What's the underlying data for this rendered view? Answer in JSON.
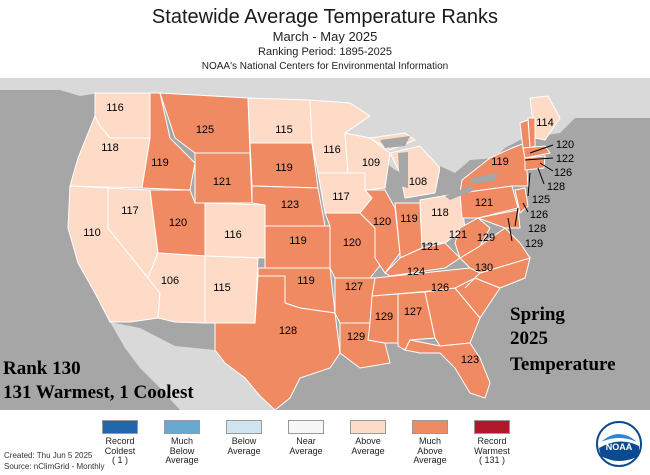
{
  "header": {
    "title": "Statewide Average Temperature Ranks",
    "period": "March - May 2025",
    "ranking_period": "Ranking Period: 1895-2025",
    "source_org": "NOAA's National Centers for Environmental Information"
  },
  "overlay": {
    "rank_line": "Rank 130",
    "warm_cool_line": "131 Warmest, 1 Coolest",
    "season_line1": "Spring",
    "season_line2": "2025",
    "season_line3": "Temperature"
  },
  "states": [
    {
      "name": "Washington",
      "rank": "116"
    },
    {
      "name": "Oregon",
      "rank": "118"
    },
    {
      "name": "California",
      "rank": "110"
    },
    {
      "name": "Nevada",
      "rank": "117"
    },
    {
      "name": "Idaho",
      "rank": "119"
    },
    {
      "name": "Montana",
      "rank": "125"
    },
    {
      "name": "Wyoming",
      "rank": "121"
    },
    {
      "name": "Utah",
      "rank": "120"
    },
    {
      "name": "Arizona",
      "rank": "106"
    },
    {
      "name": "Colorado",
      "rank": "116"
    },
    {
      "name": "New Mexico",
      "rank": "115"
    },
    {
      "name": "North Dakota",
      "rank": "115"
    },
    {
      "name": "South Dakota",
      "rank": "119"
    },
    {
      "name": "Nebraska",
      "rank": "123"
    },
    {
      "name": "Kansas",
      "rank": "119"
    },
    {
      "name": "Oklahoma",
      "rank": "119"
    },
    {
      "name": "Texas",
      "rank": "128"
    },
    {
      "name": "Minnesota",
      "rank": "116"
    },
    {
      "name": "Iowa",
      "rank": "117"
    },
    {
      "name": "Missouri",
      "rank": "120"
    },
    {
      "name": "Arkansas",
      "rank": "127"
    },
    {
      "name": "Louisiana",
      "rank": "129"
    },
    {
      "name": "Wisconsin",
      "rank": "109"
    },
    {
      "name": "Illinois",
      "rank": "120"
    },
    {
      "name": "Michigan",
      "rank": "108"
    },
    {
      "name": "Indiana",
      "rank": "119"
    },
    {
      "name": "Ohio",
      "rank": "118"
    },
    {
      "name": "Kentucky",
      "rank": "121"
    },
    {
      "name": "Tennessee",
      "rank": "124"
    },
    {
      "name": "Mississippi",
      "rank": "129"
    },
    {
      "name": "Alabama",
      "rank": "127"
    },
    {
      "name": "Georgia",
      "rank": "126"
    },
    {
      "name": "Florida",
      "rank": "123"
    },
    {
      "name": "South Carolina",
      "rank": "130"
    },
    {
      "name": "North Carolina",
      "rank": "129"
    },
    {
      "name": "Virginia",
      "rank": "121"
    },
    {
      "name": "West Virginia",
      "rank": "121"
    },
    {
      "name": "Pennsylvania",
      "rank": "121"
    },
    {
      "name": "New York",
      "rank": "119"
    },
    {
      "name": "Maine",
      "rank": "114"
    },
    {
      "name": "New Hampshire",
      "rank": "120"
    },
    {
      "name": "Vermont",
      "rank": "122"
    },
    {
      "name": "Massachusetts",
      "rank": "126"
    },
    {
      "name": "Rhode Island",
      "rank": "128"
    },
    {
      "name": "Connecticut",
      "rank": "125"
    },
    {
      "name": "New Jersey",
      "rank": "126"
    },
    {
      "name": "Delaware",
      "rank": "128"
    },
    {
      "name": "Maryland",
      "rank": "129"
    }
  ],
  "legend": [
    {
      "line1": "Record",
      "line2": "Coldest",
      "line3": "( 1 )",
      "color": "#2166ac"
    },
    {
      "line1": "Much",
      "line2": "Below",
      "line3": "Average",
      "color": "#67a9cf"
    },
    {
      "line1": "Below",
      "line2": "Average",
      "line3": "",
      "color": "#d1e5f0"
    },
    {
      "line1": "Near",
      "line2": "Average",
      "line3": "",
      "color": "#f7f7f7"
    },
    {
      "line1": "Above",
      "line2": "Average",
      "line3": "",
      "color": "#fddbc7"
    },
    {
      "line1": "Much",
      "line2": "Above",
      "line3": "Average",
      "color": "#ef8a62"
    },
    {
      "line1": "Record",
      "line2": "Warmest",
      "line3": "( 131 )",
      "color": "#b2182b"
    }
  ],
  "footer": {
    "created": "Created: Thu Jun  5 2025",
    "source": "Source: nClimGrid - Monthly"
  },
  "logo": {
    "text": "NOAA"
  },
  "colors": {
    "above": "#fddbc7",
    "much_above": "#ef8a62",
    "background": "#a6a6a6",
    "ocean": "#a6a6a6",
    "land_outside": "#d9d9d9"
  }
}
